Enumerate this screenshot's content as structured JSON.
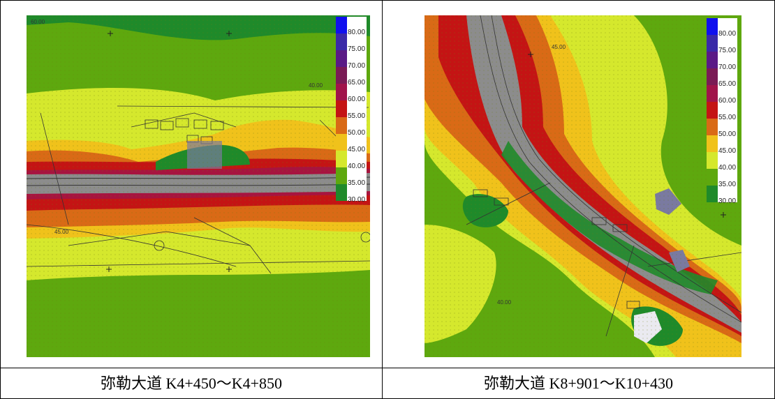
{
  "panels": [
    {
      "caption": "弥勒大道 K4+450～K4+850"
    },
    {
      "caption": "弥勒大道 K8+901～K10+430"
    }
  ],
  "legend": {
    "labels": [
      "80.00",
      "75.00",
      "70.00",
      "65.00",
      "60.00",
      "55.00",
      "50.00",
      "45.00",
      "40.00",
      "35.00",
      "30.00"
    ],
    "colors": [
      "#1010ee",
      "#3a2aa8",
      "#5a1a86",
      "#7a1b55",
      "#a0144a",
      "#c41414",
      "#d96a16",
      "#f0c21b",
      "#d5e82d",
      "#5ea80e",
      "#1f8a2a"
    ]
  },
  "contour_labels_left": [
    "60.00",
    "45.00",
    "40.00"
  ],
  "contour_labels_right": [
    "45.00",
    "40.00"
  ]
}
